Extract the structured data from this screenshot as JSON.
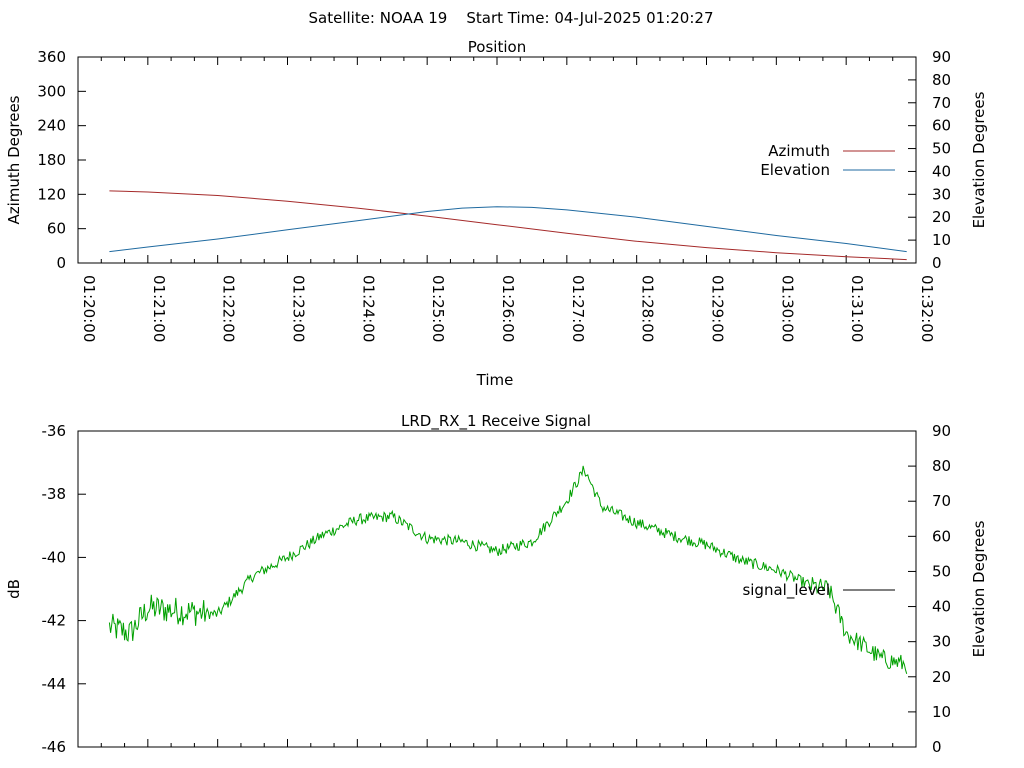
{
  "header": {
    "text": "Satellite: NOAA 19    Start Time: 04-Jul-2025 01:20:27"
  },
  "colors": {
    "azimuth": "#a52a2a",
    "elevation": "#1f6aa0",
    "signal": "#00a000",
    "signal_legend": "#000000"
  },
  "chart_data": [
    {
      "type": "line",
      "title": "Position",
      "xlabel": "Time",
      "ylabel": "Azimuth Degrees",
      "y2label": "Elevation Degrees",
      "ylim": [
        0,
        360
      ],
      "y2lim": [
        0,
        90
      ],
      "xlim": [
        "01:20:00",
        "01:32:00"
      ],
      "grid": false,
      "legend_position": "right",
      "y_ticks": [
        "0",
        "60",
        "120",
        "180",
        "240",
        "300",
        "360"
      ],
      "y2_ticks": [
        "0",
        "10",
        "20",
        "30",
        "40",
        "50",
        "60",
        "70",
        "80",
        "90"
      ],
      "x_ticks": [
        "01:20:00",
        "01:21:00",
        "01:22:00",
        "01:23:00",
        "01:24:00",
        "01:25:00",
        "01:26:00",
        "01:27:00",
        "01:28:00",
        "01:29:00",
        "01:30:00",
        "01:31:00",
        "01:32:00"
      ],
      "series": [
        {
          "name": "Azimuth",
          "axis": "left",
          "x": [
            "01:20:27",
            "01:21:00",
            "01:22:00",
            "01:23:00",
            "01:24:00",
            "01:25:00",
            "01:26:00",
            "01:27:00",
            "01:28:00",
            "01:29:00",
            "01:30:00",
            "01:31:00",
            "01:31:52"
          ],
          "y": [
            126,
            124,
            118,
            108,
            96,
            82,
            67,
            52,
            38,
            27,
            18,
            11,
            6
          ]
        },
        {
          "name": "Elevation",
          "axis": "right",
          "x": [
            "01:20:27",
            "01:21:00",
            "01:22:00",
            "01:23:00",
            "01:24:00",
            "01:25:00",
            "01:25:30",
            "01:26:00",
            "01:26:30",
            "01:27:00",
            "01:28:00",
            "01:29:00",
            "01:30:00",
            "01:31:00",
            "01:31:52"
          ],
          "y": [
            5,
            7,
            10.5,
            14.5,
            18.5,
            22.5,
            24,
            24.6,
            24.3,
            23.2,
            20,
            16,
            12,
            8.5,
            5
          ]
        }
      ]
    },
    {
      "type": "line",
      "title": "LRD_RX_1 Receive Signal",
      "xlabel": "",
      "ylabel": "dB",
      "y2label": "Elevation Degrees",
      "ylim": [
        -46,
        -36
      ],
      "y2lim": [
        0,
        90
      ],
      "xlim": [
        "01:20:00",
        "01:32:00"
      ],
      "grid": false,
      "legend_position": "right",
      "y_ticks": [
        "-46",
        "-44",
        "-42",
        "-40",
        "-38",
        "-36"
      ],
      "y2_ticks": [
        "0",
        "10",
        "20",
        "30",
        "40",
        "50",
        "60",
        "70",
        "80",
        "90"
      ],
      "series": [
        {
          "name": "signal_level",
          "axis": "left",
          "x": [
            "01:20:27",
            "01:20:45",
            "01:21:00",
            "01:21:30",
            "01:22:00",
            "01:22:30",
            "01:23:00",
            "01:23:30",
            "01:24:00",
            "01:24:30",
            "01:25:00",
            "01:25:30",
            "01:26:00",
            "01:26:30",
            "01:27:00",
            "01:27:15",
            "01:27:30",
            "01:28:00",
            "01:28:30",
            "01:29:00",
            "01:29:30",
            "01:30:00",
            "01:30:30",
            "01:30:45",
            "01:31:00",
            "01:31:30",
            "01:31:52"
          ],
          "y": [
            -42.2,
            -42.4,
            -41.6,
            -41.7,
            -41.8,
            -40.6,
            -40.0,
            -39.3,
            -38.8,
            -38.7,
            -39.4,
            -39.5,
            -39.8,
            -39.5,
            -38.2,
            -37.2,
            -38.4,
            -38.9,
            -39.3,
            -39.6,
            -40.1,
            -40.4,
            -40.9,
            -41.0,
            -42.4,
            -43.2,
            -43.4
          ]
        }
      ]
    }
  ]
}
